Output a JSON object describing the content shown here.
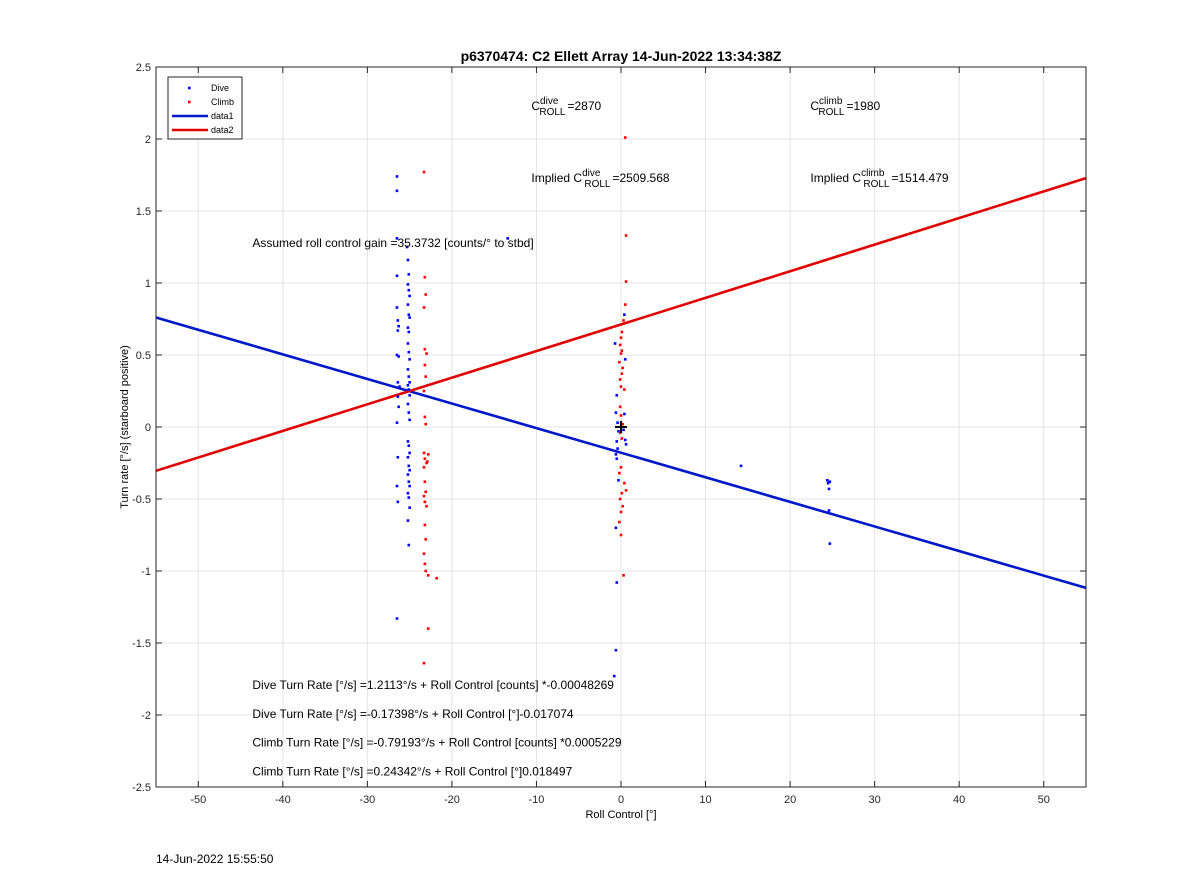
{
  "footer_timestamp": "14-Jun-2022 15:55:50",
  "chart_data": {
    "type": "scatter",
    "title": "p6370474: C2 Ellett Array 14-Jun-2022 13:34:38Z",
    "xlabel": "Roll Control [°]",
    "ylabel": "Turn rate [°/s] (starboard positive)",
    "xlim": [
      -55,
      55
    ],
    "ylim": [
      -2.5,
      2.5
    ],
    "xticks": [
      -50,
      -40,
      -30,
      -20,
      -10,
      0,
      10,
      20,
      30,
      40,
      50
    ],
    "yticks": [
      2.5,
      2,
      1.5,
      1,
      0.5,
      0,
      -0.5,
      -1,
      -1.5,
      -2,
      -2.5
    ],
    "xtick_labels": [
      "-50",
      "-40",
      "-30",
      "-20",
      "-10",
      "0",
      "10",
      "20",
      "30",
      "40",
      "50"
    ],
    "ytick_labels": [
      "2.5",
      "2",
      "1.5",
      "1",
      "0.5",
      "0",
      "-0.5",
      "-1",
      "-1.5",
      "-2",
      "-2.5"
    ],
    "grid": true,
    "legend_position": "top-left",
    "colors": {
      "dive": "#0000ff",
      "climb": "#ff0000",
      "data1": "#0018c8",
      "data2": "#e00000"
    },
    "legend": [
      {
        "label": "Dive",
        "kind": "marker",
        "color_key": "dive"
      },
      {
        "label": "Climb",
        "kind": "marker",
        "color_key": "climb"
      },
      {
        "label": "data1",
        "kind": "line",
        "color_key": "data1"
      },
      {
        "label": "data2",
        "kind": "line",
        "color_key": "data2"
      }
    ],
    "series": [
      {
        "name": "Dive",
        "color_key": "dive",
        "points": [
          [
            -26.5,
            1.74
          ],
          [
            -26.5,
            1.64
          ],
          [
            -26.5,
            1.31
          ],
          [
            -26.5,
            1.05
          ],
          [
            -26.5,
            0.83
          ],
          [
            -26.4,
            0.74
          ],
          [
            -26.3,
            0.7
          ],
          [
            -26.4,
            0.67
          ],
          [
            -26.5,
            0.5
          ],
          [
            -26.3,
            0.49
          ],
          [
            -26.4,
            0.31
          ],
          [
            -26.2,
            0.28
          ],
          [
            -26.4,
            0.21
          ],
          [
            -26.3,
            0.14
          ],
          [
            -26.5,
            0.03
          ],
          [
            -26.4,
            -0.21
          ],
          [
            -26.5,
            -0.41
          ],
          [
            -26.4,
            -0.52
          ],
          [
            -26.5,
            -1.33
          ],
          [
            -25.3,
            1.25
          ],
          [
            -25.2,
            1.16
          ],
          [
            -25.1,
            1.06
          ],
          [
            -25.2,
            0.99
          ],
          [
            -25.1,
            0.95
          ],
          [
            -25.0,
            0.91
          ],
          [
            -25.2,
            0.85
          ],
          [
            -25.1,
            0.78
          ],
          [
            -25.0,
            0.76
          ],
          [
            -25.2,
            0.69
          ],
          [
            -25.1,
            0.66
          ],
          [
            -25.2,
            0.58
          ],
          [
            -25.1,
            0.52
          ],
          [
            -25.0,
            0.47
          ],
          [
            -25.2,
            0.4
          ],
          [
            -25.1,
            0.35
          ],
          [
            -25.0,
            0.31
          ],
          [
            -25.2,
            0.29
          ],
          [
            -25.1,
            0.26
          ],
          [
            -25.0,
            0.22
          ],
          [
            -25.2,
            0.16
          ],
          [
            -25.1,
            0.1
          ],
          [
            -25.0,
            0.05
          ],
          [
            -25.2,
            -0.1
          ],
          [
            -25.1,
            -0.13
          ],
          [
            -25.0,
            -0.18
          ],
          [
            -25.2,
            -0.21
          ],
          [
            -25.1,
            -0.27
          ],
          [
            -25.0,
            -0.3
          ],
          [
            -25.2,
            -0.33
          ],
          [
            -25.1,
            -0.38
          ],
          [
            -25.0,
            -0.41
          ],
          [
            -25.2,
            -0.46
          ],
          [
            -25.1,
            -0.49
          ],
          [
            -25.0,
            -0.56
          ],
          [
            -25.2,
            -0.65
          ],
          [
            -25.1,
            -0.82
          ],
          [
            -13.4,
            1.31
          ],
          [
            -0.7,
            0.58
          ],
          [
            -0.5,
            0.22
          ],
          [
            -0.6,
            0.1
          ],
          [
            -0.4,
            0.03
          ],
          [
            -0.3,
            -0.03
          ],
          [
            -0.5,
            -0.1
          ],
          [
            -0.4,
            -0.15
          ],
          [
            -0.6,
            -0.19
          ],
          [
            -0.5,
            -0.22
          ],
          [
            -0.3,
            -0.37
          ],
          [
            -0.6,
            -0.7
          ],
          [
            -0.5,
            -1.08
          ],
          [
            -0.6,
            -1.55
          ],
          [
            -0.8,
            -1.73
          ],
          [
            0.4,
            0.78
          ],
          [
            0.5,
            0.47
          ],
          [
            0.4,
            0.09
          ],
          [
            0.3,
            -0.02
          ],
          [
            0.5,
            -0.09
          ],
          [
            0.6,
            -0.12
          ],
          [
            14.2,
            -0.27
          ],
          [
            24.4,
            -0.37
          ],
          [
            24.5,
            -0.39
          ],
          [
            24.7,
            -0.38
          ],
          [
            24.6,
            -0.43
          ],
          [
            24.6,
            -0.58
          ],
          [
            24.7,
            -0.81
          ]
        ]
      },
      {
        "name": "Climb",
        "color_key": "climb",
        "points": [
          [
            -23.3,
            1.77
          ],
          [
            -23.2,
            1.04
          ],
          [
            -23.1,
            0.92
          ],
          [
            -23.3,
            0.83
          ],
          [
            -23.2,
            0.54
          ],
          [
            -23.0,
            0.51
          ],
          [
            -23.2,
            0.43
          ],
          [
            -23.1,
            0.35
          ],
          [
            -23.3,
            0.25
          ],
          [
            -23.2,
            0.07
          ],
          [
            -23.1,
            0.02
          ],
          [
            -23.3,
            -0.18
          ],
          [
            -23.2,
            -0.22
          ],
          [
            -23.0,
            -0.25
          ],
          [
            -23.3,
            -0.28
          ],
          [
            -22.8,
            -0.19
          ],
          [
            -22.9,
            -0.24
          ],
          [
            -23.2,
            -0.38
          ],
          [
            -23.1,
            -0.45
          ],
          [
            -23.3,
            -0.48
          ],
          [
            -23.2,
            -0.52
          ],
          [
            -23.0,
            -0.55
          ],
          [
            -23.2,
            -0.68
          ],
          [
            -23.1,
            -0.78
          ],
          [
            -23.3,
            -0.88
          ],
          [
            -23.2,
            -0.95
          ],
          [
            -23.1,
            -1.0
          ],
          [
            -22.8,
            -1.03
          ],
          [
            -21.8,
            -1.05
          ],
          [
            -22.8,
            -1.4
          ],
          [
            -23.3,
            -1.64
          ],
          [
            0.5,
            2.01
          ],
          [
            0.6,
            1.33
          ],
          [
            0.6,
            1.01
          ],
          [
            0.5,
            0.85
          ],
          [
            0.3,
            0.74
          ],
          [
            0.1,
            0.66
          ],
          [
            0.0,
            0.62
          ],
          [
            -0.1,
            0.57
          ],
          [
            0.1,
            0.53
          ],
          [
            0.0,
            0.51
          ],
          [
            -0.2,
            0.45
          ],
          [
            0.2,
            0.41
          ],
          [
            0.1,
            0.37
          ],
          [
            -0.1,
            0.33
          ],
          [
            0.0,
            0.28
          ],
          [
            0.4,
            0.26
          ],
          [
            -0.1,
            0.14
          ],
          [
            0.0,
            0.08
          ],
          [
            0.2,
            0.02
          ],
          [
            -0.1,
            -0.04
          ],
          [
            0.1,
            -0.08
          ],
          [
            0.0,
            -0.28
          ],
          [
            -0.2,
            -0.32
          ],
          [
            0.4,
            -0.39
          ],
          [
            0.6,
            -0.44
          ],
          [
            0.1,
            -0.46
          ],
          [
            -0.1,
            -0.5
          ],
          [
            0.2,
            -0.55
          ],
          [
            0.0,
            -0.59
          ],
          [
            -0.2,
            -0.66
          ],
          [
            0.0,
            -0.75
          ],
          [
            0.3,
            -1.03
          ]
        ]
      }
    ],
    "lines": [
      {
        "name": "data1",
        "color_key": "data1",
        "x": [
          -55,
          55
        ],
        "y": [
          0.7604,
          -1.1176
        ]
      },
      {
        "name": "data2",
        "color_key": "data2",
        "x": [
          -55,
          55
        ],
        "y": [
          -0.3043,
          1.7285
        ]
      }
    ],
    "center_marker": {
      "x": 0,
      "y": 0,
      "symbol": "+"
    },
    "annotations": {
      "c_dive": {
        "base": "C",
        "sup": "dive",
        "sub": "ROLL",
        "value": "=2870",
        "x": -10.6,
        "y": 2.2
      },
      "c_climb": {
        "base": "C",
        "sup": "climb",
        "sub": "ROLL",
        "value": "=1980",
        "x": 22.4,
        "y": 2.2
      },
      "implied_dive": {
        "prefix": "Implied ",
        "base": "C",
        "sup": "dive",
        "sub": "ROLL",
        "value": "=2509.568",
        "x": -10.6,
        "y": 1.7
      },
      "implied_climb": {
        "prefix": "Implied ",
        "base": "C",
        "sup": "climb",
        "sub": "ROLL",
        "value": "=1514.479",
        "x": 22.4,
        "y": 1.7
      },
      "gain": {
        "text": "Assumed roll control gain =35.3732 [counts/° to stbd]",
        "x": -43.6,
        "y": 1.25
      },
      "eq1": {
        "text": "Dive Turn Rate [°/s] =1.2113°/s + Roll Control [counts] *-0.00048269",
        "x": -43.6,
        "y": -1.82
      },
      "eq2": {
        "text": "Dive Turn Rate [°/s] =-0.17398°/s + Roll Control [°]-0.017074",
        "x": -43.6,
        "y": -2.02
      },
      "eq3": {
        "text": "Climb Turn Rate [°/s] =-0.79193°/s + Roll Control [counts] *0.0005229",
        "x": -43.6,
        "y": -2.22
      },
      "eq4": {
        "text": "Climb Turn Rate [°/s] =0.24342°/s + Roll Control [°]0.018497",
        "x": -43.6,
        "y": -2.42
      }
    }
  }
}
